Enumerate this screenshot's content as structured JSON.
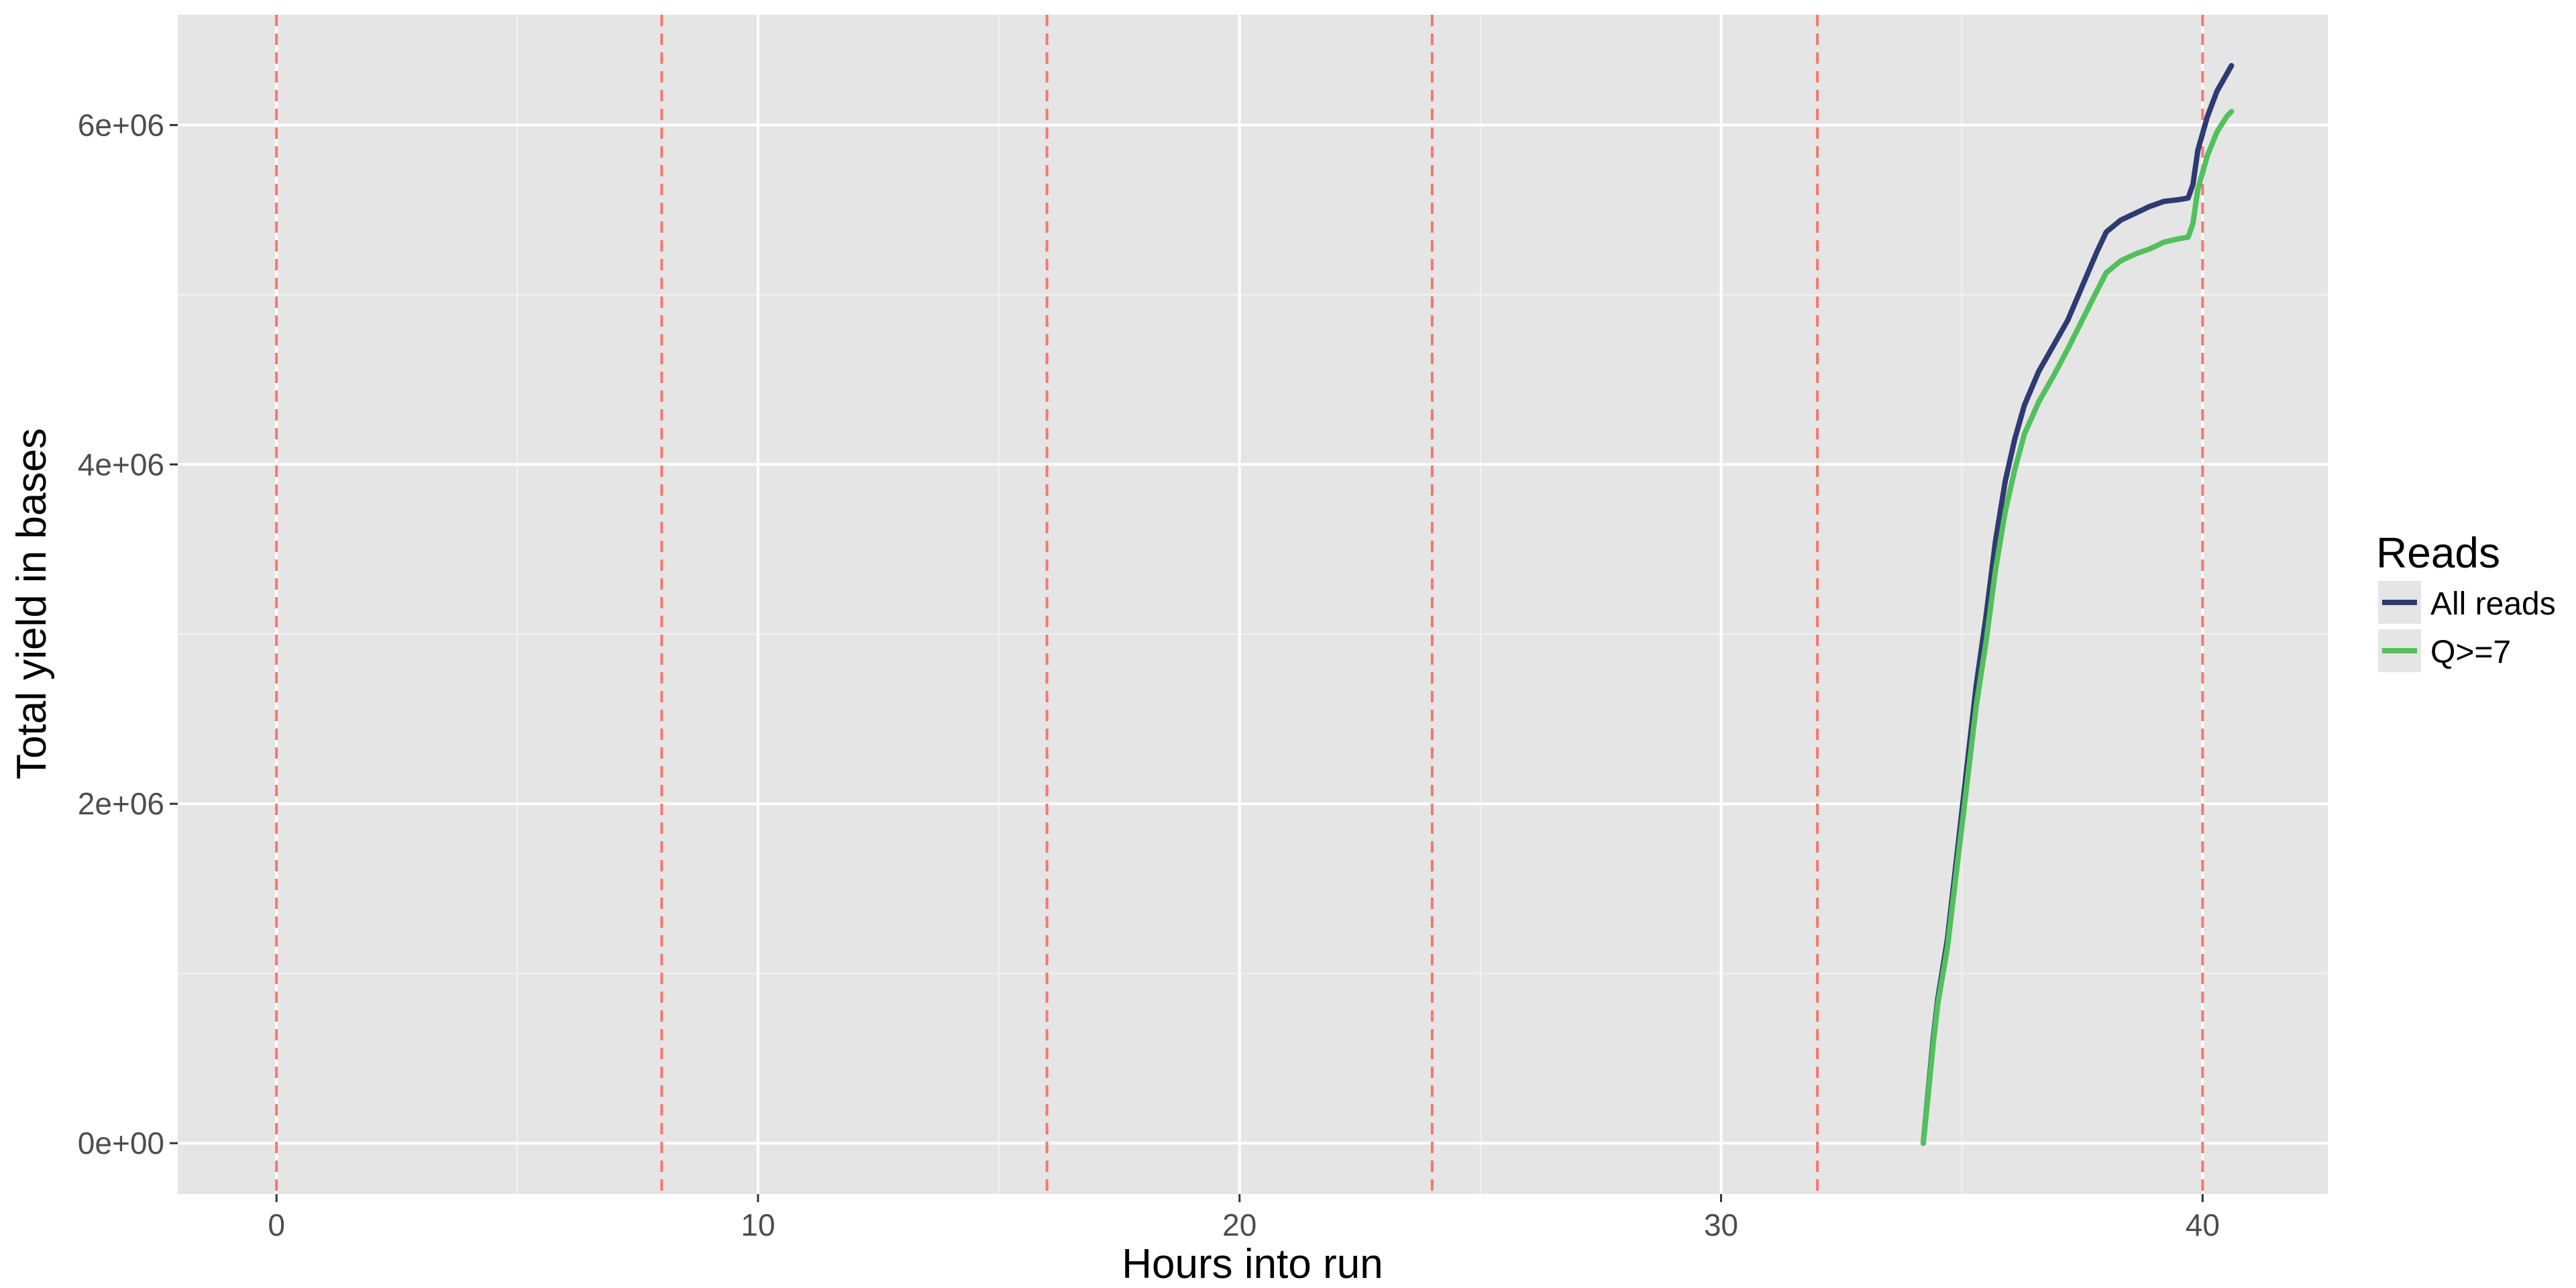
{
  "chart_data": {
    "type": "line",
    "title": "",
    "xlabel": "Hours into run",
    "ylabel": "Total yield in bases",
    "xlim": [
      -2.05,
      42.6
    ],
    "ylim": [
      -300000,
      6650000
    ],
    "x_ticks": [
      0,
      10,
      20,
      30,
      40
    ],
    "x_tick_labels": [
      "0",
      "10",
      "20",
      "30",
      "40"
    ],
    "y_ticks": [
      0,
      2000000,
      4000000,
      6000000
    ],
    "y_tick_labels": [
      "0e+00",
      "2e+06",
      "4e+06",
      "6e+06"
    ],
    "x_minor_ticks": [
      5,
      15,
      25,
      35
    ],
    "y_minor_ticks": [
      1000000,
      3000000,
      5000000
    ],
    "grid": true,
    "vlines": [
      0,
      8,
      16,
      24,
      32,
      40
    ],
    "vline_color": "#F8766D",
    "legend": {
      "title": "Reads",
      "position": "right",
      "entries": [
        "All reads",
        "Q>=7"
      ]
    },
    "series": [
      {
        "name": "All reads",
        "color": "#2E3A72",
        "points": [
          [
            34.2,
            0
          ],
          [
            34.3,
            300000
          ],
          [
            34.4,
            600000
          ],
          [
            34.5,
            850000
          ],
          [
            34.7,
            1200000
          ],
          [
            34.9,
            1700000
          ],
          [
            35.1,
            2200000
          ],
          [
            35.3,
            2700000
          ],
          [
            35.5,
            3100000
          ],
          [
            35.7,
            3550000
          ],
          [
            35.9,
            3900000
          ],
          [
            36.1,
            4150000
          ],
          [
            36.3,
            4350000
          ],
          [
            36.6,
            4550000
          ],
          [
            36.9,
            4700000
          ],
          [
            37.2,
            4850000
          ],
          [
            37.5,
            5050000
          ],
          [
            37.8,
            5250000
          ],
          [
            38.0,
            5370000
          ],
          [
            38.3,
            5440000
          ],
          [
            38.6,
            5480000
          ],
          [
            38.9,
            5520000
          ],
          [
            39.2,
            5550000
          ],
          [
            39.5,
            5560000
          ],
          [
            39.7,
            5570000
          ],
          [
            39.8,
            5650000
          ],
          [
            39.9,
            5850000
          ],
          [
            40.1,
            6050000
          ],
          [
            40.3,
            6200000
          ],
          [
            40.5,
            6300000
          ],
          [
            40.6,
            6350000
          ]
        ]
      },
      {
        "name": "Q>=7",
        "color": "#52C05C",
        "points": [
          [
            34.2,
            0
          ],
          [
            34.3,
            280000
          ],
          [
            34.4,
            570000
          ],
          [
            34.5,
            820000
          ],
          [
            34.7,
            1150000
          ],
          [
            34.9,
            1630000
          ],
          [
            35.1,
            2100000
          ],
          [
            35.3,
            2580000
          ],
          [
            35.5,
            2950000
          ],
          [
            35.7,
            3380000
          ],
          [
            35.9,
            3720000
          ],
          [
            36.1,
            3970000
          ],
          [
            36.3,
            4180000
          ],
          [
            36.6,
            4370000
          ],
          [
            36.9,
            4520000
          ],
          [
            37.2,
            4680000
          ],
          [
            37.5,
            4850000
          ],
          [
            37.8,
            5020000
          ],
          [
            38.0,
            5130000
          ],
          [
            38.3,
            5200000
          ],
          [
            38.6,
            5240000
          ],
          [
            38.9,
            5270000
          ],
          [
            39.2,
            5310000
          ],
          [
            39.5,
            5330000
          ],
          [
            39.7,
            5340000
          ],
          [
            39.8,
            5420000
          ],
          [
            39.9,
            5620000
          ],
          [
            40.1,
            5820000
          ],
          [
            40.3,
            5960000
          ],
          [
            40.5,
            6050000
          ],
          [
            40.6,
            6080000
          ]
        ]
      }
    ]
  }
}
